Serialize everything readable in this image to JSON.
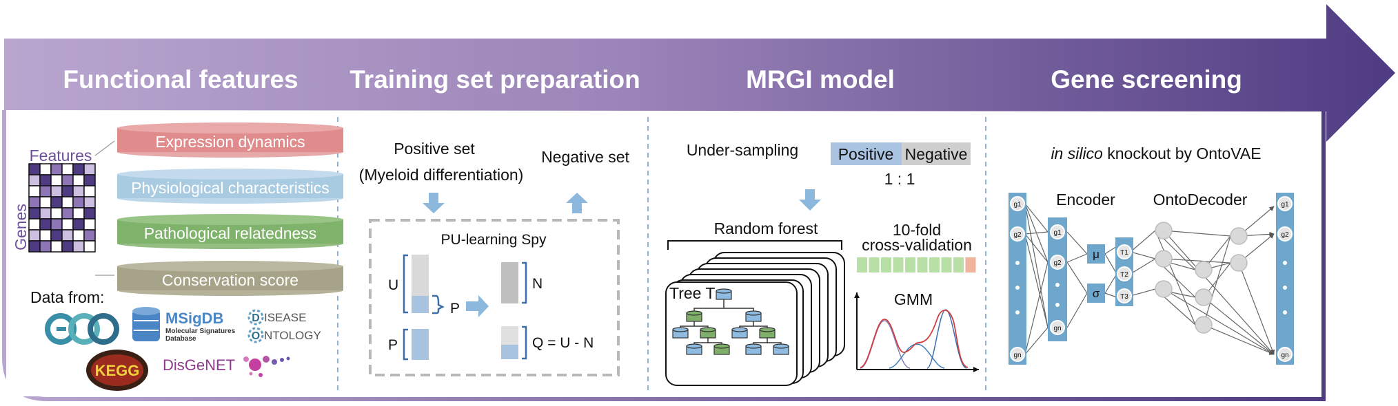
{
  "banner": {
    "titles": [
      "Functional features",
      "Training set preparation",
      "MRGI model",
      "Gene screening"
    ],
    "colors": {
      "start": "#b8a4cd",
      "end": "#4f3b82",
      "accent_purple": "#6b4f9a"
    }
  },
  "functional_features": {
    "matrix_label": "Features",
    "axis_label": "Genes",
    "feature_layers": [
      {
        "label": "Expression dynamics",
        "color": "#e08c8c"
      },
      {
        "label": "Physiological characteristics",
        "color": "#a9cbe2"
      },
      {
        "label": "Pathological relatedness",
        "color": "#7fb26b"
      },
      {
        "label": "Conservation score",
        "color": "#a6a388"
      }
    ],
    "data_from_label": "Data from:",
    "sources": {
      "geo": "GEO",
      "msigdb": "MSigDB",
      "msigdb_sub1": "Molecular Signatures",
      "msigdb_sub2": "Database",
      "do_line1": "ISEASE",
      "do_line2": "NTOLOGY",
      "do_letter1": "D",
      "do_letter2": "O",
      "kegg": "KEGG",
      "disgenet": "DisGeNET"
    }
  },
  "training_set": {
    "positive_line1": "Positive set",
    "positive_line2": "(Myeloid differentiation)",
    "negative": "Negative set",
    "box_title": "PU-learning Spy",
    "label_u": "U",
    "label_p": "P",
    "label_p_arrow": "P",
    "label_n": "N",
    "label_q": "Q = U - N"
  },
  "mrgi_model": {
    "undersampling": "Under-sampling",
    "positive": "Positive",
    "negative": "Negative",
    "ratio": "1 : 1",
    "random_forest": "Random forest",
    "tree_label": "Tree T",
    "cv_line1": "10-fold",
    "cv_line2": "cross-validation",
    "gmm": "GMM"
  },
  "gene_screening": {
    "title_italic": "in silico",
    "title_rest": " knockout by OntoVAE",
    "encoder": "Encoder",
    "decoder": "OntoDecoder",
    "mu": "μ",
    "sigma": "σ",
    "input_genes": [
      "g1",
      "g2",
      "gn"
    ],
    "encoded_genes": [
      "g1",
      "g2",
      "gn"
    ],
    "terms": [
      "T1",
      "T2",
      "T3"
    ],
    "output_genes": [
      "g1",
      "g2",
      "gn"
    ]
  }
}
